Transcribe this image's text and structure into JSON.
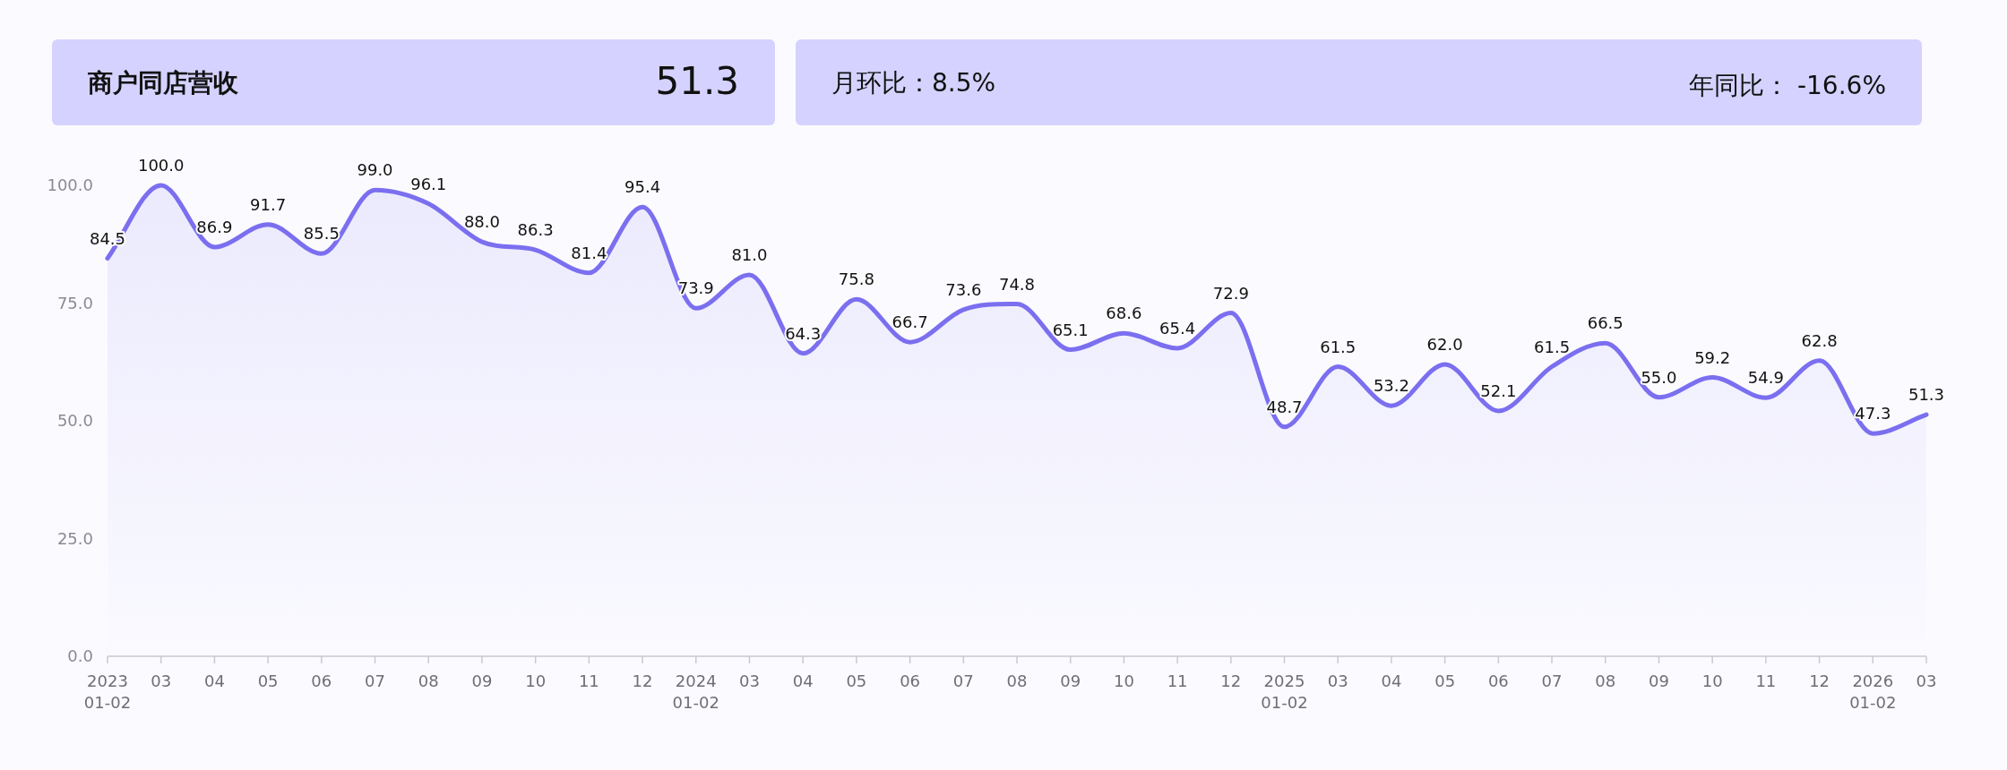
{
  "chart_data": [
    {
      "type": "other",
      "annotations": [
        "商户同店营收",
        "51.3"
      ]
    },
    {
      "type": "other",
      "annotations": [
        "月环比：8.5%",
        "年同比： -16.6%"
      ]
    },
    {
      "type": "area",
      "categories": [
        "2023\n01-02",
        "03",
        "04",
        "05",
        "06",
        "07",
        "08",
        "09",
        "10",
        "11",
        "12",
        "2024\n01-02",
        "03",
        "04",
        "05",
        "06",
        "07",
        "08",
        "09",
        "10",
        "11",
        "12",
        "2025\n01-02",
        "03",
        "04",
        "05",
        "06",
        "07",
        "08",
        "09",
        "10",
        "11",
        "12",
        "2026\n01-02",
        "03"
      ],
      "series": [
        {
          "color": "#7b6ff0",
          "values": [
            84.5,
            100.0,
            86.9,
            91.7,
            85.5,
            99.0,
            96.1,
            88.0,
            86.3,
            81.4,
            95.4,
            73.9,
            81.0,
            64.3,
            75.8,
            66.7,
            73.6,
            74.8,
            65.1,
            68.6,
            65.4,
            72.9,
            48.7,
            61.5,
            53.2,
            62.0,
            52.1,
            61.5,
            66.5,
            55.0,
            59.2,
            54.9,
            62.8,
            47.3,
            51.3
          ]
        }
      ],
      "ylim": [
        0,
        100
      ],
      "yticks": [
        {
          "value": 0,
          "label": "0.0"
        },
        {
          "value": 25,
          "label": "25.0"
        },
        {
          "value": 50,
          "label": "50.0"
        },
        {
          "value": 75,
          "label": "75.0"
        },
        {
          "value": 100,
          "label": "100.0"
        }
      ],
      "value_labels": [
        "84.5",
        "100.0",
        "86.9",
        "91.7",
        "85.5",
        "99.0",
        "96.1",
        "88.0",
        "86.3",
        "81.4",
        "95.4",
        "73.9",
        "81.0",
        "64.3",
        "75.8",
        "66.7",
        "73.6",
        "74.8",
        "65.1",
        "68.6",
        "65.4",
        "72.9",
        "48.7",
        "61.5",
        "53.2",
        "62.0",
        "52.1",
        "61.5",
        "66.5",
        "55.0",
        "59.2",
        "54.9",
        "62.8",
        "47.3",
        "51.3"
      ],
      "grid": false
    }
  ]
}
